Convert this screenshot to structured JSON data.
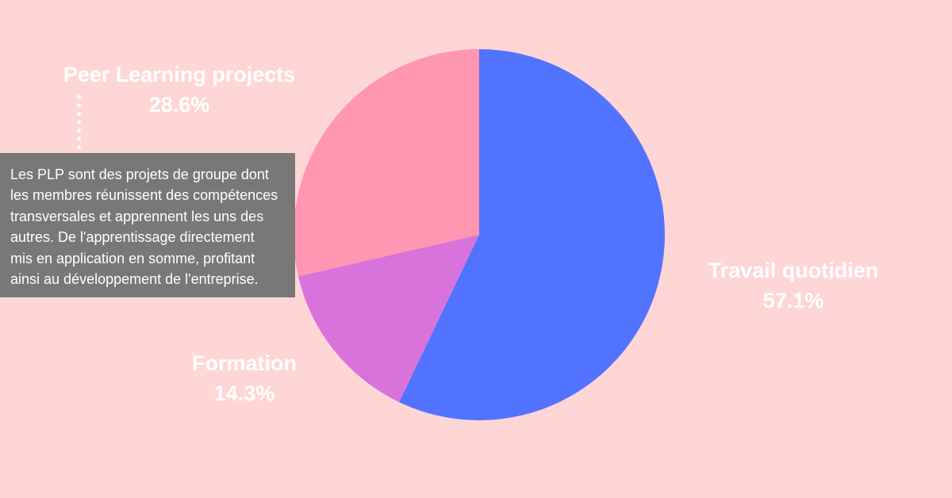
{
  "chart_data": {
    "type": "pie",
    "title": "",
    "start_angle_deg": 0,
    "direction": "clockwise",
    "slices": [
      {
        "label": "Travail quotidien",
        "value": 57.1,
        "value_label": "57.1%",
        "color": "#5273ff"
      },
      {
        "label": "Formation",
        "value": 14.3,
        "value_label": "14.3%",
        "color": "#d873db"
      },
      {
        "label": "Peer Learning projects",
        "value": 28.6,
        "value_label": "28.6%",
        "color": "#ff96b2"
      }
    ],
    "legend": "none"
  },
  "callout": {
    "lines": [
      "Les PLP sont des projets de groupe dont",
      "les membres réunissent des compétences",
      "transversales et apprennent les uns des",
      "autres. De l'apprentissage directement",
      "mis en application en somme, profitant",
      "ainsi au développement de l'entreprise."
    ]
  },
  "colors": {
    "background": "#ffd6d6",
    "callout_background": "#7a7777",
    "label_text": "#ffffff"
  }
}
